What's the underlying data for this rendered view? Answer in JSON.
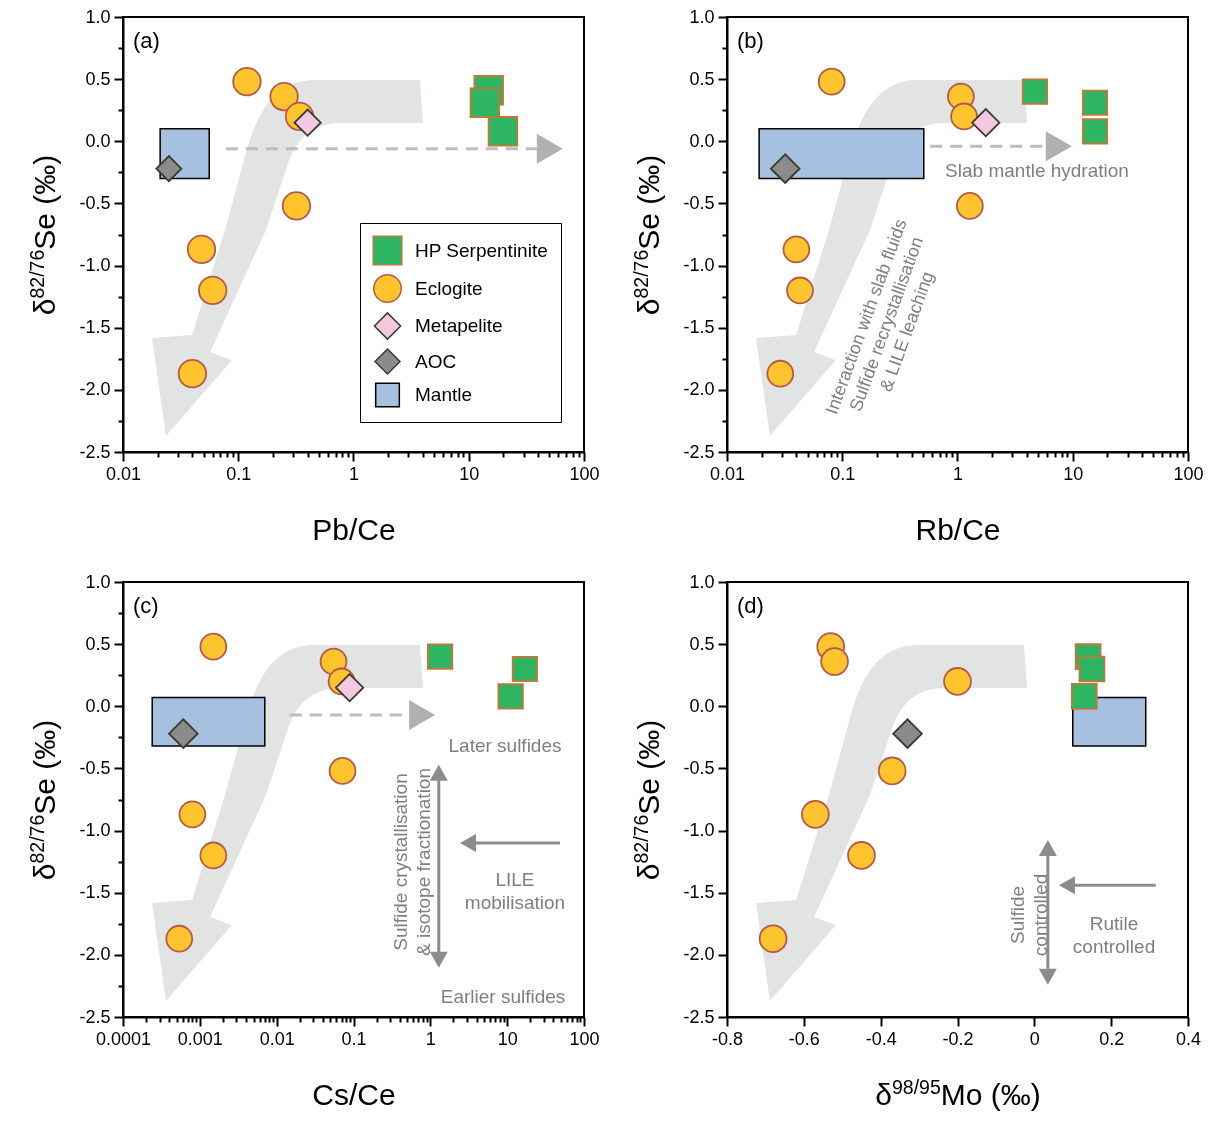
{
  "chart_data": [
    {
      "type": "scatter",
      "annotations": [
        "(a)"
      ],
      "xlabel": "Pb/Ce",
      "ylabel": "δ$^{82/76}$Se (‰)",
      "log": "x",
      "legend": "right",
      "xlim": [
        0.01,
        100
      ],
      "xticks": [
        0.01,
        {
          "value": 0.02,
          "label": null
        },
        {
          "value": 0.03,
          "label": null
        },
        {
          "value": 0.04,
          "label": null
        },
        {
          "value": 0.05,
          "label": null
        },
        {
          "value": 0.06,
          "label": null
        },
        {
          "value": 0.07,
          "label": null
        },
        {
          "value": 0.08,
          "label": null
        },
        {
          "value": 0.09,
          "label": null
        },
        0.1,
        {
          "value": 0.2,
          "label": null
        },
        {
          "value": 0.3,
          "label": null
        },
        {
          "value": 0.4,
          "label": null
        },
        {
          "value": 0.5,
          "label": null
        },
        {
          "value": 0.6,
          "label": null
        },
        {
          "value": 0.7,
          "label": null
        },
        {
          "value": 0.8,
          "label": null
        },
        {
          "value": 0.9,
          "label": null
        },
        1,
        {
          "value": 2,
          "label": null
        },
        {
          "value": 3,
          "label": null
        },
        {
          "value": 4,
          "label": null
        },
        {
          "value": 5,
          "label": null
        },
        {
          "value": 6,
          "label": null
        },
        {
          "value": 7,
          "label": null
        },
        {
          "value": 8,
          "label": null
        },
        {
          "value": 9,
          "label": null
        },
        10,
        {
          "value": 20,
          "label": null
        },
        {
          "value": 30,
          "label": null
        },
        {
          "value": 40,
          "label": null
        },
        {
          "value": 50,
          "label": null
        },
        {
          "value": 60,
          "label": null
        },
        {
          "value": 70,
          "label": null
        },
        {
          "value": 80,
          "label": null
        },
        {
          "value": 90,
          "label": null
        },
        100
      ],
      "ylim": [
        -2.5,
        1
      ],
      "yticks": [
        {
          "value": -2.5,
          "label": "-2.5"
        },
        {
          "value": -2.25,
          "label": null
        },
        {
          "value": -2,
          "label": "-2.0"
        },
        {
          "value": -1.75,
          "label": null
        },
        {
          "value": -1.5,
          "label": "-1.5"
        },
        {
          "value": -1.25,
          "label": null
        },
        {
          "value": -1,
          "label": "-1.0"
        },
        {
          "value": -0.75,
          "label": null
        },
        {
          "value": -0.5,
          "label": "-0.5"
        },
        {
          "value": -0.25,
          "label": null
        },
        {
          "value": 0,
          "label": "0.0"
        },
        {
          "value": 0.25,
          "label": null
        },
        {
          "value": 0.5,
          "label": "0.5"
        },
        {
          "value": 0.75,
          "label": null
        },
        {
          "value": 1,
          "label": "1.0"
        }
      ],
      "series": [
        {
          "name": "HP Serpentinite",
          "color": "#2db562",
          "marker": "square",
          "x": [
            14.9,
            13.8,
            19.8
          ],
          "values": [
            0.41,
            0.31,
            0.08
          ]
        },
        {
          "name": "Eclogite",
          "color": "#fec42d",
          "marker": "circle",
          "x": [
            0.119,
            0.25,
            0.34,
            0.32,
            0.048,
            0.06,
            0.04
          ],
          "values": [
            0.48,
            0.36,
            0.2,
            -0.52,
            -0.87,
            -1.2,
            -1.87
          ]
        },
        {
          "name": "Metapelite",
          "color": "#f4c8e0",
          "marker": "diamond",
          "x": [
            0.4
          ],
          "values": [
            0.15
          ]
        },
        {
          "name": "AOC",
          "color": "#8b8b8b",
          "marker": "diamond",
          "x": [
            0.025
          ],
          "values": [
            -0.22
          ]
        },
        {
          "type": "line",
          "name": "Mantle",
          "color": "#a5c1df",
          "x": [
            0.021,
            0.056
          ],
          "values": [
            null,
            null
          ],
          "lower": [
            -0.3,
            -0.3
          ],
          "upper": [
            0.1,
            0.1
          ]
        }
      ]
    },
    {
      "type": "scatter",
      "annotations": [
        "(b)",
        "Slab mantle hydration",
        "Interaction with slab fluids\nSulfide recrystallisation\n& LILE leaching"
      ],
      "xlabel": "Rb/Ce",
      "ylabel": "δ$^{82/76}$Se (‰)",
      "log": "x",
      "xlim": [
        0.01,
        100
      ],
      "xticks": [
        0.01,
        {
          "value": 0.02,
          "label": null
        },
        {
          "value": 0.03,
          "label": null
        },
        {
          "value": 0.04,
          "label": null
        },
        {
          "value": 0.05,
          "label": null
        },
        {
          "value": 0.06,
          "label": null
        },
        {
          "value": 0.07,
          "label": null
        },
        {
          "value": 0.08,
          "label": null
        },
        {
          "value": 0.09,
          "label": null
        },
        0.1,
        {
          "value": 0.2,
          "label": null
        },
        {
          "value": 0.3,
          "label": null
        },
        {
          "value": 0.4,
          "label": null
        },
        {
          "value": 0.5,
          "label": null
        },
        {
          "value": 0.6,
          "label": null
        },
        {
          "value": 0.7,
          "label": null
        },
        {
          "value": 0.8,
          "label": null
        },
        {
          "value": 0.9,
          "label": null
        },
        1,
        {
          "value": 2,
          "label": null
        },
        {
          "value": 3,
          "label": null
        },
        {
          "value": 4,
          "label": null
        },
        {
          "value": 5,
          "label": null
        },
        {
          "value": 6,
          "label": null
        },
        {
          "value": 7,
          "label": null
        },
        {
          "value": 8,
          "label": null
        },
        {
          "value": 9,
          "label": null
        },
        10,
        {
          "value": 20,
          "label": null
        },
        {
          "value": 30,
          "label": null
        },
        {
          "value": 40,
          "label": null
        },
        {
          "value": 50,
          "label": null
        },
        {
          "value": 60,
          "label": null
        },
        {
          "value": 70,
          "label": null
        },
        {
          "value": 80,
          "label": null
        },
        {
          "value": 90,
          "label": null
        },
        100
      ],
      "ylim": [
        -2.5,
        1
      ],
      "yticks": [
        {
          "value": -2.5,
          "label": "-2.5"
        },
        {
          "value": -2.25,
          "label": null
        },
        {
          "value": -2,
          "label": "-2.0"
        },
        {
          "value": -1.75,
          "label": null
        },
        {
          "value": -1.5,
          "label": "-1.5"
        },
        {
          "value": -1.25,
          "label": null
        },
        {
          "value": -1,
          "label": "-1.0"
        },
        {
          "value": -0.75,
          "label": null
        },
        {
          "value": -0.5,
          "label": "-0.5"
        },
        {
          "value": -0.25,
          "label": null
        },
        {
          "value": 0,
          "label": "0.0"
        },
        {
          "value": 0.25,
          "label": null
        },
        {
          "value": 0.5,
          "label": "0.5"
        },
        {
          "value": 0.75,
          "label": null
        },
        {
          "value": 1,
          "label": "1.0"
        }
      ],
      "series": [
        {
          "type": "line",
          "color": "#a5c1df",
          "x": [
            0.019,
            0.51
          ],
          "values": [
            null,
            null
          ],
          "lower": [
            -0.3,
            -0.3
          ],
          "upper": [
            0.1,
            0.1
          ]
        },
        {
          "color": "#2db562",
          "marker": "square",
          "x": [
            4.7,
            15.6,
            15.6
          ],
          "values": [
            0.4,
            0.31,
            0.08
          ]
        },
        {
          "color": "#fec42d",
          "marker": "circle",
          "x": [
            0.081,
            1.07,
            1.14,
            1.28,
            0.04,
            0.043,
            0.029
          ],
          "values": [
            0.48,
            0.36,
            0.2,
            -0.52,
            -0.87,
            -1.2,
            -1.87
          ]
        },
        {
          "color": "#f4c8e0",
          "marker": "diamond",
          "x": [
            1.76
          ],
          "values": [
            0.15
          ]
        },
        {
          "color": "#8b8b8b",
          "marker": "diamond",
          "x": [
            0.032
          ],
          "values": [
            -0.22
          ]
        }
      ]
    },
    {
      "type": "scatter",
      "annotations": [
        "(c)",
        "Later sulfides",
        "LILE\nmobilisation",
        "Sulfide crystallisation\n& isotope fractionation",
        "Earlier sulfides"
      ],
      "xlabel": "Cs/Ce",
      "ylabel": "δ$^{82/76}$Se (‰)",
      "log": "x",
      "xlim": [
        0.0001,
        100
      ],
      "xticks": [
        0.0001,
        {
          "value": 0.0002,
          "label": null
        },
        {
          "value": 0.0003,
          "label": null
        },
        {
          "value": 0.0004,
          "label": null
        },
        {
          "value": 0.0005,
          "label": null
        },
        {
          "value": 0.0006,
          "label": null
        },
        {
          "value": 0.0007,
          "label": null
        },
        {
          "value": 0.0008,
          "label": null
        },
        {
          "value": 0.0009,
          "label": null
        },
        0.001,
        {
          "value": 0.002,
          "label": null
        },
        {
          "value": 0.003,
          "label": null
        },
        {
          "value": 0.004,
          "label": null
        },
        {
          "value": 0.005,
          "label": null
        },
        {
          "value": 0.006,
          "label": null
        },
        {
          "value": 0.007,
          "label": null
        },
        {
          "value": 0.008,
          "label": null
        },
        {
          "value": 0.009,
          "label": null
        },
        0.01,
        {
          "value": 0.02,
          "label": null
        },
        {
          "value": 0.03,
          "label": null
        },
        {
          "value": 0.04,
          "label": null
        },
        {
          "value": 0.05,
          "label": null
        },
        {
          "value": 0.06,
          "label": null
        },
        {
          "value": 0.07,
          "label": null
        },
        {
          "value": 0.08,
          "label": null
        },
        {
          "value": 0.09,
          "label": null
        },
        0.1,
        {
          "value": 0.2,
          "label": null
        },
        {
          "value": 0.3,
          "label": null
        },
        {
          "value": 0.4,
          "label": null
        },
        {
          "value": 0.5,
          "label": null
        },
        {
          "value": 0.6,
          "label": null
        },
        {
          "value": 0.7,
          "label": null
        },
        {
          "value": 0.8,
          "label": null
        },
        {
          "value": 0.9,
          "label": null
        },
        1,
        {
          "value": 2,
          "label": null
        },
        {
          "value": 3,
          "label": null
        },
        {
          "value": 4,
          "label": null
        },
        {
          "value": 5,
          "label": null
        },
        {
          "value": 6,
          "label": null
        },
        {
          "value": 7,
          "label": null
        },
        {
          "value": 8,
          "label": null
        },
        {
          "value": 9,
          "label": null
        },
        10,
        {
          "value": 20,
          "label": null
        },
        {
          "value": 30,
          "label": null
        },
        {
          "value": 40,
          "label": null
        },
        {
          "value": 50,
          "label": null
        },
        {
          "value": 60,
          "label": null
        },
        {
          "value": 70,
          "label": null
        },
        {
          "value": 80,
          "label": null
        },
        {
          "value": 90,
          "label": null
        },
        100
      ],
      "ylim": [
        -2.5,
        1
      ],
      "yticks": [
        {
          "value": -2.5,
          "label": "-2.5"
        },
        {
          "value": -2.25,
          "label": null
        },
        {
          "value": -2,
          "label": "-2.0"
        },
        {
          "value": -1.75,
          "label": null
        },
        {
          "value": -1.5,
          "label": "-1.5"
        },
        {
          "value": -1.25,
          "label": null
        },
        {
          "value": -1,
          "label": "-1.0"
        },
        {
          "value": -0.75,
          "label": null
        },
        {
          "value": -0.5,
          "label": "-0.5"
        },
        {
          "value": -0.25,
          "label": null
        },
        {
          "value": 0,
          "label": "0.0"
        },
        {
          "value": 0.25,
          "label": null
        },
        {
          "value": 0.5,
          "label": "0.5"
        },
        {
          "value": 0.75,
          "label": null
        },
        {
          "value": 1,
          "label": "1.0"
        }
      ],
      "series": [
        {
          "type": "line",
          "color": "#a5c1df",
          "x": [
            0.00024,
            0.007
          ],
          "values": [
            null,
            null
          ],
          "lower": [
            -0.32,
            -0.32
          ],
          "upper": [
            0.07,
            0.07
          ]
        },
        {
          "color": "#2db562",
          "marker": "square",
          "x": [
            1.34,
            17,
            11.1
          ],
          "values": [
            0.4,
            0.3,
            0.08
          ]
        },
        {
          "color": "#fec42d",
          "marker": "circle",
          "x": [
            0.0015,
            0.055,
            0.07,
            0.072,
            0.0008,
            0.0015,
            0.00054
          ],
          "values": [
            0.48,
            0.36,
            0.2,
            -0.52,
            -0.87,
            -1.2,
            -1.87
          ]
        },
        {
          "color": "#f4c8e0",
          "marker": "diamond",
          "x": [
            0.089
          ],
          "values": [
            0.15
          ]
        },
        {
          "color": "#8b8b8b",
          "marker": "diamond",
          "x": [
            0.00061
          ],
          "values": [
            -0.22
          ]
        }
      ]
    },
    {
      "type": "scatter",
      "annotations": [
        "(d)",
        "Sulfide\ncontrolled",
        "Rutile\ncontrolled"
      ],
      "xlabel": "δ$^{98/95}$Mo (‰)",
      "ylabel": "δ$^{82/76}$Se (‰)",
      "xlim": [
        -0.8,
        0.4
      ],
      "xticks": [
        -0.8,
        -0.6,
        -0.4,
        -0.2,
        0,
        0.2,
        0.4
      ],
      "ylim": [
        -2.5,
        1
      ],
      "yticks": [
        {
          "value": -2.5,
          "label": "-2.5"
        },
        {
          "value": -2,
          "label": "-2.0"
        },
        {
          "value": -1.5,
          "label": "-1.5"
        },
        {
          "value": -1,
          "label": "-1.0"
        },
        {
          "value": -0.5,
          "label": "-0.5"
        },
        {
          "value": 0,
          "label": "0.0"
        },
        {
          "value": 0.5,
          "label": "0.5"
        },
        {
          "value": 1,
          "label": "1.0"
        }
      ],
      "series": [
        {
          "type": "line",
          "color": "#a5c1df",
          "x": [
            0.1,
            0.29
          ],
          "values": [
            null,
            null
          ],
          "lower": [
            -0.32,
            -0.32
          ],
          "upper": [
            0.07,
            0.07
          ]
        },
        {
          "color": "#2db562",
          "marker": "square",
          "x": [
            0.14,
            0.15,
            0.13
          ],
          "values": [
            0.4,
            0.3,
            0.08
          ]
        },
        {
          "color": "#fec42d",
          "marker": "circle",
          "x": [
            -0.53,
            -0.52,
            -0.2,
            -0.37,
            -0.57,
            -0.45,
            -0.68
          ],
          "values": [
            0.48,
            0.36,
            0.2,
            -0.52,
            -0.87,
            -1.2,
            -1.87
          ]
        },
        {
          "color": "#8b8b8b",
          "marker": "diamond",
          "x": [
            -0.33
          ],
          "values": [
            -0.22
          ]
        }
      ]
    }
  ]
}
